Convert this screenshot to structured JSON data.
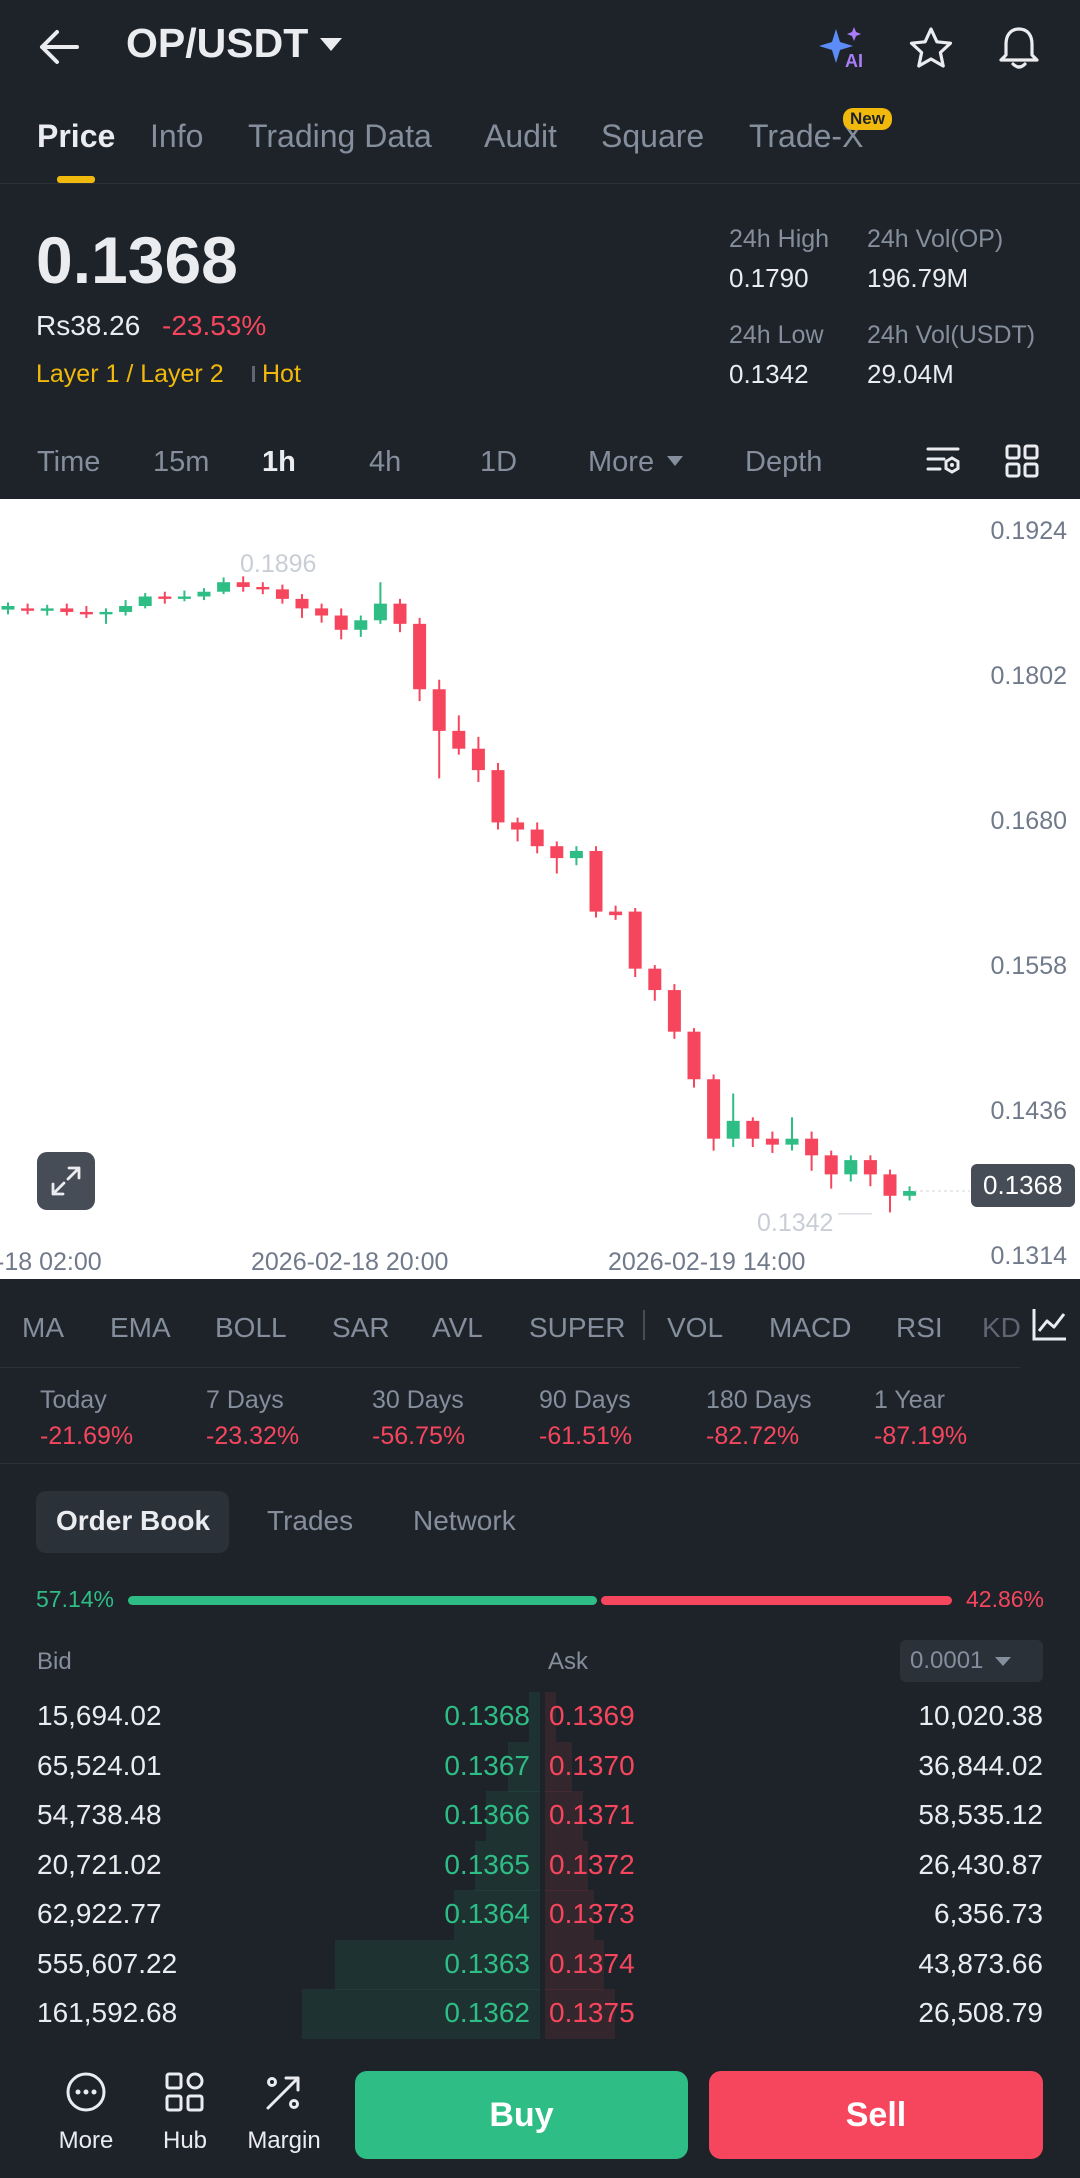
{
  "header": {
    "pair": "OP/USDT",
    "icons": [
      "back-arrow-icon",
      "ai-sparkle-icon",
      "star-icon",
      "bell-icon"
    ],
    "ai_label": "AI"
  },
  "tabs": [
    {
      "label": "Price",
      "active": true
    },
    {
      "label": "Info"
    },
    {
      "label": "Trading Data"
    },
    {
      "label": "Audit"
    },
    {
      "label": "Square"
    },
    {
      "label": "Trade-X",
      "badge": "New"
    }
  ],
  "price": {
    "last": "0.1368",
    "fiat": "Rs38.26",
    "change": "-23.53%",
    "tag1": "Layer 1 / Layer 2",
    "tag2": "Hot"
  },
  "stats": {
    "high_label": "24h High",
    "high": "0.1790",
    "vol_op_label": "24h Vol(OP)",
    "vol_op": "196.79M",
    "low_label": "24h Low",
    "low": "0.1342",
    "vol_usdt_label": "24h Vol(USDT)",
    "vol_usdt": "29.04M"
  },
  "intervals": {
    "time": "Time",
    "m15": "15m",
    "h1": "1h",
    "h4": "4h",
    "d1": "1D",
    "more": "More",
    "depth": "Depth"
  },
  "chart_data": {
    "type": "candlestick",
    "y_ticks": [
      "0.1924",
      "0.1802",
      "0.1680",
      "0.1558",
      "0.1436",
      "0.1314"
    ],
    "x_ticks": [
      "-18 02:00",
      "2026-02-18 20:00",
      "2026-02-19 14:00"
    ],
    "high_annotation": "0.1896",
    "low_annotation": "0.1342",
    "current_price": "0.1368",
    "ylim": [
      0.1294,
      0.195
    ],
    "candles": [
      [
        0.1857,
        0.186,
        0.1863,
        0.1853
      ],
      [
        0.1858,
        0.1856,
        0.1862,
        0.1853
      ],
      [
        0.1856,
        0.1858,
        0.1861,
        0.1852
      ],
      [
        0.1858,
        0.1855,
        0.1862,
        0.1852
      ],
      [
        0.1855,
        0.1853,
        0.186,
        0.185
      ],
      [
        0.1853,
        0.1855,
        0.1858,
        0.1845
      ],
      [
        0.1855,
        0.186,
        0.1865,
        0.1852
      ],
      [
        0.186,
        0.1868,
        0.1871,
        0.1858
      ],
      [
        0.1868,
        0.1866,
        0.1872,
        0.1862
      ],
      [
        0.1866,
        0.1868,
        0.1873,
        0.1864
      ],
      [
        0.1868,
        0.1872,
        0.1875,
        0.1865
      ],
      [
        0.1872,
        0.188,
        0.1884,
        0.187
      ],
      [
        0.188,
        0.1876,
        0.1885,
        0.1872
      ],
      [
        0.1876,
        0.1874,
        0.188,
        0.187
      ],
      [
        0.1874,
        0.1866,
        0.1878,
        0.1862
      ],
      [
        0.1866,
        0.1858,
        0.187,
        0.185
      ],
      [
        0.1858,
        0.1852,
        0.1862,
        0.1846
      ],
      [
        0.1852,
        0.184,
        0.1858,
        0.1832
      ],
      [
        0.184,
        0.1848,
        0.1852,
        0.1834
      ],
      [
        0.1848,
        0.1862,
        0.188,
        0.1845
      ],
      [
        0.1862,
        0.1845,
        0.1866,
        0.1838
      ],
      [
        0.1845,
        0.179,
        0.185,
        0.178
      ],
      [
        0.179,
        0.1755,
        0.1798,
        0.1715
      ],
      [
        0.1755,
        0.174,
        0.1768,
        0.1735
      ],
      [
        0.174,
        0.1722,
        0.175,
        0.1712
      ],
      [
        0.1722,
        0.1678,
        0.1728,
        0.1672
      ],
      [
        0.1678,
        0.1672,
        0.1682,
        0.1662
      ],
      [
        0.1672,
        0.1658,
        0.1678,
        0.1652
      ],
      [
        0.1658,
        0.1648,
        0.1662,
        0.1635
      ],
      [
        0.1648,
        0.1654,
        0.1658,
        0.1642
      ],
      [
        0.1654,
        0.1603,
        0.1658,
        0.1598
      ],
      [
        0.1603,
        0.16,
        0.1608,
        0.1596
      ],
      [
        0.1603,
        0.1555,
        0.1606,
        0.1548
      ],
      [
        0.1555,
        0.1537,
        0.1558,
        0.1528
      ],
      [
        0.1537,
        0.1502,
        0.1542,
        0.1496
      ],
      [
        0.1502,
        0.1462,
        0.1505,
        0.1455
      ],
      [
        0.1462,
        0.1412,
        0.1466,
        0.1402
      ],
      [
        0.1412,
        0.1427,
        0.145,
        0.1405
      ],
      [
        0.1427,
        0.1412,
        0.143,
        0.1405
      ],
      [
        0.1412,
        0.1407,
        0.1418,
        0.14
      ],
      [
        0.1407,
        0.1412,
        0.143,
        0.1402
      ],
      [
        0.1412,
        0.1398,
        0.1418,
        0.1385
      ],
      [
        0.1398,
        0.1382,
        0.1402,
        0.137
      ],
      [
        0.1382,
        0.1394,
        0.1398,
        0.1376
      ],
      [
        0.1394,
        0.1382,
        0.1398,
        0.1372
      ],
      [
        0.1382,
        0.1364,
        0.1386,
        0.135
      ],
      [
        0.1364,
        0.1368,
        0.1372,
        0.136
      ]
    ]
  },
  "indicators": [
    "MA",
    "EMA",
    "BOLL",
    "SAR",
    "AVL",
    "SUPER",
    "VOL",
    "MACD",
    "RSI",
    "KD"
  ],
  "performance": [
    {
      "label": "Today",
      "value": "-21.69%"
    },
    {
      "label": "7 Days",
      "value": "-23.32%"
    },
    {
      "label": "30 Days",
      "value": "-56.75%"
    },
    {
      "label": "90 Days",
      "value": "-61.51%"
    },
    {
      "label": "180 Days",
      "value": "-82.72%"
    },
    {
      "label": "1 Year",
      "value": "-87.19%"
    }
  ],
  "book_tabs": [
    "Order Book",
    "Trades",
    "Network"
  ],
  "ratio": {
    "bid_pct": "57.14%",
    "ask_pct": "42.86%",
    "bid_fraction": 0.5714
  },
  "order_book": {
    "bid_header": "Bid",
    "ask_header": "Ask",
    "tick": "0.0001",
    "rows": [
      {
        "bid_qty": "15,694.02",
        "bid_price": "0.1368",
        "ask_price": "0.1369",
        "ask_qty": "10,020.38",
        "bid_depth": 0.02,
        "ask_depth": 0.02
      },
      {
        "bid_qty": "65,524.01",
        "bid_price": "0.1367",
        "ask_price": "0.1370",
        "ask_qty": "36,844.02",
        "bid_depth": 0.06,
        "ask_depth": 0.05
      },
      {
        "bid_qty": "54,738.48",
        "bid_price": "0.1366",
        "ask_price": "0.1371",
        "ask_qty": "58,535.12",
        "bid_depth": 0.1,
        "ask_depth": 0.07
      },
      {
        "bid_qty": "20,721.02",
        "bid_price": "0.1365",
        "ask_price": "0.1372",
        "ask_qty": "26,430.87",
        "bid_depth": 0.12,
        "ask_depth": 0.08
      },
      {
        "bid_qty": "62,922.77",
        "bid_price": "0.1364",
        "ask_price": "0.1373",
        "ask_qty": "6,356.73",
        "bid_depth": 0.16,
        "ask_depth": 0.09
      },
      {
        "bid_qty": "555,607.22",
        "bid_price": "0.1363",
        "ask_price": "0.1374",
        "ask_qty": "43,873.66",
        "bid_depth": 0.38,
        "ask_depth": 0.11
      },
      {
        "bid_qty": "161,592.68",
        "bid_price": "0.1362",
        "ask_price": "0.1375",
        "ask_qty": "26,508.79",
        "bid_depth": 0.44,
        "ask_depth": 0.13
      }
    ]
  },
  "bottom_bar": {
    "more": "More",
    "hub": "Hub",
    "margin": "Margin",
    "buy": "Buy",
    "sell": "Sell"
  }
}
